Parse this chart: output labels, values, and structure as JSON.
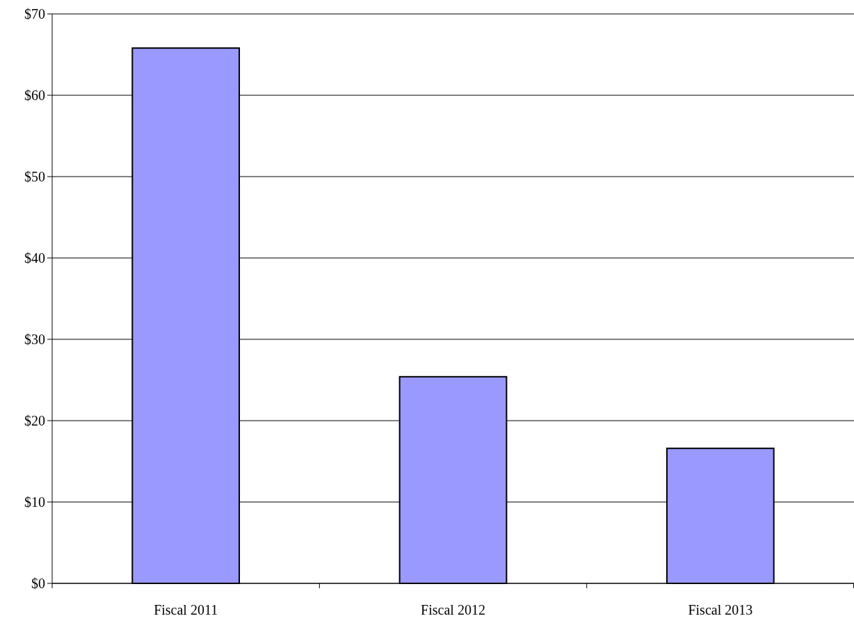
{
  "chart_data": {
    "type": "bar",
    "categories": [
      "Fiscal 2011",
      "Fiscal 2012",
      "Fiscal 2013"
    ],
    "values": [
      65.8,
      25.4,
      16.6
    ],
    "color": "#9999ff",
    "ylim": [
      0,
      70
    ],
    "yticks": [
      {
        "value": 0,
        "label": "$0"
      },
      {
        "value": 10,
        "label": "$10"
      },
      {
        "value": 20,
        "label": "$20"
      },
      {
        "value": 30,
        "label": "$30"
      },
      {
        "value": 40,
        "label": "$40"
      },
      {
        "value": 50,
        "label": "$50"
      },
      {
        "value": 60,
        "label": "$60"
      },
      {
        "value": 70,
        "label": "$70"
      }
    ],
    "grid": "y"
  }
}
